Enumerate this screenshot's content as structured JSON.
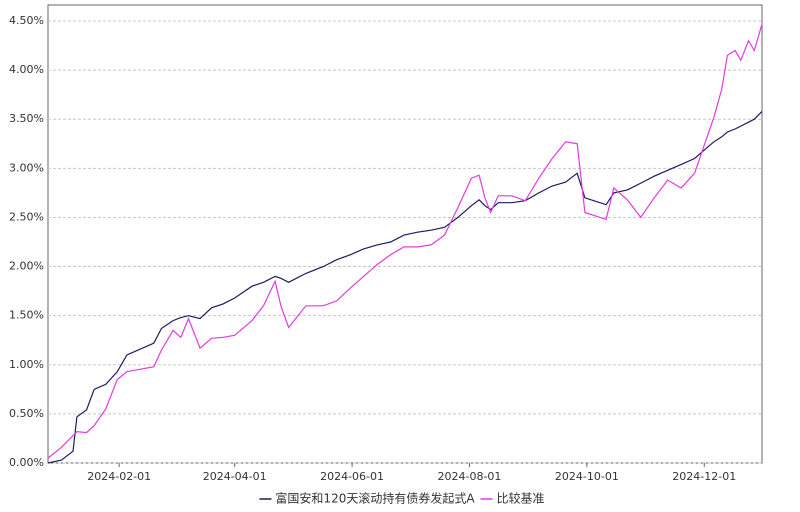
{
  "chart_data": {
    "type": "line",
    "x": [
      "2023-12-26",
      "2024-01-02",
      "2024-01-08",
      "2024-01-10",
      "2024-01-15",
      "2024-01-19",
      "2024-01-25",
      "2024-01-31",
      "2024-02-05",
      "2024-02-19",
      "2024-02-23",
      "2024-02-29",
      "2024-03-04",
      "2024-03-08",
      "2024-03-14",
      "2024-03-20",
      "2024-03-26",
      "2024-04-01",
      "2024-04-10",
      "2024-04-16",
      "2024-04-22",
      "2024-04-25",
      "2024-04-29",
      "2024-05-08",
      "2024-05-17",
      "2024-05-24",
      "2024-05-31",
      "2024-06-07",
      "2024-06-14",
      "2024-06-21",
      "2024-06-28",
      "2024-07-05",
      "2024-07-12",
      "2024-07-19",
      "2024-07-26",
      "2024-08-02",
      "2024-08-06",
      "2024-08-09",
      "2024-08-12",
      "2024-08-16",
      "2024-08-23",
      "2024-08-30",
      "2024-09-06",
      "2024-09-13",
      "2024-09-20",
      "2024-09-26",
      "2024-09-30",
      "2024-10-11",
      "2024-10-15",
      "2024-10-22",
      "2024-10-29",
      "2024-11-05",
      "2024-11-12",
      "2024-11-19",
      "2024-11-26",
      "2024-12-03",
      "2024-12-06",
      "2024-12-10",
      "2024-12-13",
      "2024-12-17",
      "2024-12-20",
      "2024-12-24",
      "2024-12-27",
      "2024-12-31"
    ],
    "series": [
      {
        "name": "富国安和120天滚动持有债券发起式A",
        "color": "#1c1c5c",
        "values": [
          0,
          0.03,
          0.12,
          0.47,
          0.54,
          0.75,
          0.8,
          0.93,
          1.1,
          1.22,
          1.37,
          1.45,
          1.48,
          1.5,
          1.47,
          1.58,
          1.62,
          1.68,
          1.8,
          1.84,
          1.9,
          1.88,
          1.84,
          1.93,
          2.0,
          2.07,
          2.12,
          2.18,
          2.22,
          2.25,
          2.32,
          2.35,
          2.37,
          2.4,
          2.5,
          2.62,
          2.68,
          2.62,
          2.58,
          2.65,
          2.65,
          2.67,
          2.75,
          2.82,
          2.86,
          2.95,
          2.7,
          2.63,
          2.75,
          2.78,
          2.85,
          2.92,
          2.98,
          3.04,
          3.1,
          3.22,
          3.27,
          3.32,
          3.37,
          3.4,
          3.43,
          3.47,
          3.5,
          3.58
        ]
      },
      {
        "name": "比较基准",
        "color": "#e03ce0",
        "values": [
          0.05,
          0.16,
          0.28,
          0.32,
          0.31,
          0.38,
          0.55,
          0.85,
          0.93,
          0.98,
          1.15,
          1.35,
          1.28,
          1.47,
          1.17,
          1.27,
          1.28,
          1.3,
          1.45,
          1.6,
          1.85,
          1.6,
          1.38,
          1.6,
          1.6,
          1.65,
          1.78,
          1.9,
          2.02,
          2.12,
          2.2,
          2.2,
          2.22,
          2.32,
          2.6,
          2.9,
          2.93,
          2.7,
          2.55,
          2.72,
          2.72,
          2.67,
          2.9,
          3.1,
          3.27,
          3.25,
          2.55,
          2.48,
          2.8,
          2.68,
          2.5,
          2.7,
          2.88,
          2.8,
          2.95,
          3.35,
          3.52,
          3.8,
          4.15,
          4.2,
          4.1,
          4.3,
          4.2,
          4.47
        ]
      }
    ],
    "xlim": [
      "2023-12-26",
      "2024-12-31"
    ],
    "xticks": [
      "2024-02-01",
      "2024-04-01",
      "2024-06-01",
      "2024-08-01",
      "2024-10-01",
      "2024-12-01"
    ],
    "ylim": [
      0,
      4.5
    ],
    "yticks": [
      {
        "value": 0,
        "label": "0.00%"
      },
      {
        "value": 0.5,
        "label": "0.50%"
      },
      {
        "value": 1,
        "label": "1.00%"
      },
      {
        "value": 1.5,
        "label": "1.50%"
      },
      {
        "value": 2,
        "label": "2.00%"
      },
      {
        "value": 2.5,
        "label": "2.50%"
      },
      {
        "value": 3,
        "label": "3.00%"
      },
      {
        "value": 3.5,
        "label": "3.50%"
      },
      {
        "value": 4,
        "label": "4.00%"
      },
      {
        "value": 4.5,
        "label": "4.50%"
      }
    ],
    "grid": true,
    "legend": "bottom"
  }
}
